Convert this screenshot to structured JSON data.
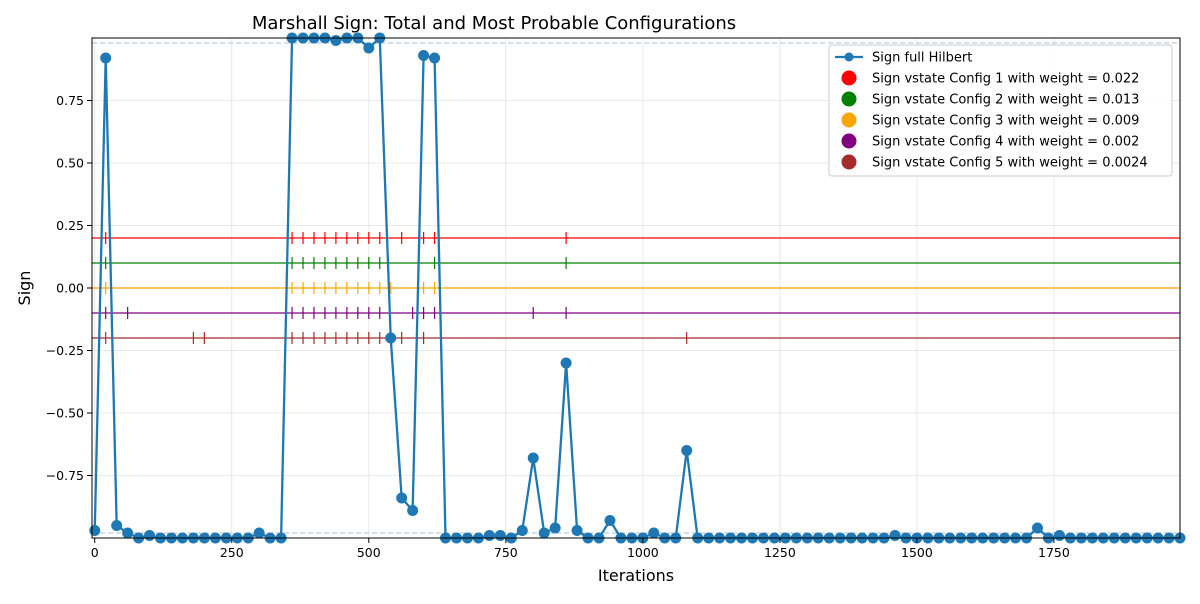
{
  "chart_data": {
    "type": "line",
    "title": "Marshall Sign: Total and Most Probable Configurations",
    "xlabel": "Iterations",
    "ylabel": "Sign",
    "xlim": [
      -5,
      1980
    ],
    "ylim": [
      -1.0,
      1.0
    ],
    "x_ticks": [
      0,
      250,
      500,
      750,
      1000,
      1250,
      1500,
      1750
    ],
    "x_tick_labels": [
      "0",
      "250",
      "500",
      "750",
      "1000",
      "1250",
      "1500",
      "1750"
    ],
    "y_ticks": [
      -0.75,
      -0.5,
      -0.25,
      0.0,
      0.25,
      0.5,
      0.75
    ],
    "y_tick_labels": [
      "−0.75",
      "−0.50",
      "−0.25",
      "0.00",
      "0.25",
      "0.50",
      "0.75"
    ],
    "grid": true,
    "legend_position": "top-right",
    "reference_lines": [
      0.98,
      -0.98
    ],
    "series_full": {
      "name": "Sign full Hilbert",
      "color": "#1f77b4",
      "x": [
        0,
        20,
        40,
        60,
        80,
        100,
        120,
        140,
        160,
        180,
        200,
        220,
        240,
        260,
        280,
        300,
        320,
        340,
        360,
        380,
        400,
        420,
        440,
        460,
        480,
        500,
        520,
        540,
        560,
        580,
        600,
        620,
        640,
        660,
        680,
        700,
        720,
        740,
        760,
        780,
        800,
        820,
        840,
        860,
        880,
        900,
        920,
        940,
        960,
        980,
        1000,
        1020,
        1040,
        1060,
        1080,
        1100,
        1120,
        1140,
        1160,
        1180,
        1200,
        1220,
        1240,
        1260,
        1280,
        1300,
        1320,
        1340,
        1360,
        1380,
        1400,
        1420,
        1440,
        1460,
        1480,
        1500,
        1520,
        1540,
        1560,
        1580,
        1600,
        1620,
        1640,
        1660,
        1680,
        1700,
        1720,
        1740,
        1760,
        1780,
        1800,
        1820,
        1840,
        1860,
        1880,
        1900,
        1920,
        1940,
        1960,
        1980
      ],
      "y": [
        -0.97,
        0.92,
        -0.95,
        -0.98,
        -1.0,
        -0.99,
        -1.0,
        -1.0,
        -1.0,
        -1.0,
        -1.0,
        -1.0,
        -1.0,
        -1.0,
        -1.0,
        -0.98,
        -1.0,
        -1.0,
        1.0,
        1.0,
        1.0,
        1.0,
        0.99,
        1.0,
        1.0,
        0.96,
        1.0,
        -0.2,
        -0.84,
        -0.89,
        0.93,
        0.92,
        -1.0,
        -1.0,
        -1.0,
        -1.0,
        -0.99,
        -0.99,
        -1.0,
        -0.97,
        -0.68,
        -0.98,
        -0.96,
        -0.3,
        -0.97,
        -1.0,
        -1.0,
        -0.93,
        -1.0,
        -1.0,
        -1.0,
        -0.98,
        -1.0,
        -1.0,
        -0.65,
        -1.0,
        -1.0,
        -1.0,
        -1.0,
        -1.0,
        -1.0,
        -1.0,
        -1.0,
        -1.0,
        -1.0,
        -1.0,
        -1.0,
        -1.0,
        -1.0,
        -1.0,
        -1.0,
        -1.0,
        -1.0,
        -0.99,
        -1.0,
        -1.0,
        -1.0,
        -1.0,
        -1.0,
        -1.0,
        -1.0,
        -1.0,
        -1.0,
        -1.0,
        -1.0,
        -1.0,
        -0.96,
        -1.0,
        -0.99,
        -1.0,
        -1.0,
        -1.0,
        -1.0,
        -1.0,
        -1.0,
        -1.0,
        -1.0,
        -1.0,
        -1.0,
        -1.0
      ]
    },
    "series_configs": [
      {
        "name": "Sign vstate Config 1 with weight = 0.022",
        "color": "#ff0000",
        "offset": 0.2,
        "ticks": [
          20,
          360,
          380,
          400,
          420,
          440,
          460,
          480,
          500,
          520,
          560,
          600,
          620,
          860
        ]
      },
      {
        "name": "Sign vstate Config 2 with weight = 0.013",
        "color": "#008000",
        "offset": 0.1,
        "ticks": [
          20,
          360,
          380,
          400,
          420,
          440,
          460,
          480,
          500,
          520,
          620,
          860
        ]
      },
      {
        "name": "Sign vstate Config 3 with weight = 0.009",
        "color": "#ffa500",
        "offset": 0.0,
        "ticks": [
          20,
          360,
          380,
          400,
          420,
          440,
          460,
          480,
          500,
          520,
          540,
          600,
          620
        ]
      },
      {
        "name": "Sign vstate Config 4 with weight = 0.002",
        "color": "#800080",
        "offset": -0.1,
        "ticks": [
          20,
          60,
          360,
          380,
          400,
          420,
          440,
          460,
          480,
          500,
          520,
          580,
          600,
          620,
          800,
          860
        ]
      },
      {
        "name": "Sign vstate Config 5 with weight = 0.0024",
        "color": "#a52a2a",
        "offset": -0.2,
        "ticks": [
          20,
          180,
          200,
          360,
          380,
          400,
          420,
          440,
          460,
          480,
          500,
          520,
          560,
          600,
          1080
        ]
      }
    ]
  }
}
